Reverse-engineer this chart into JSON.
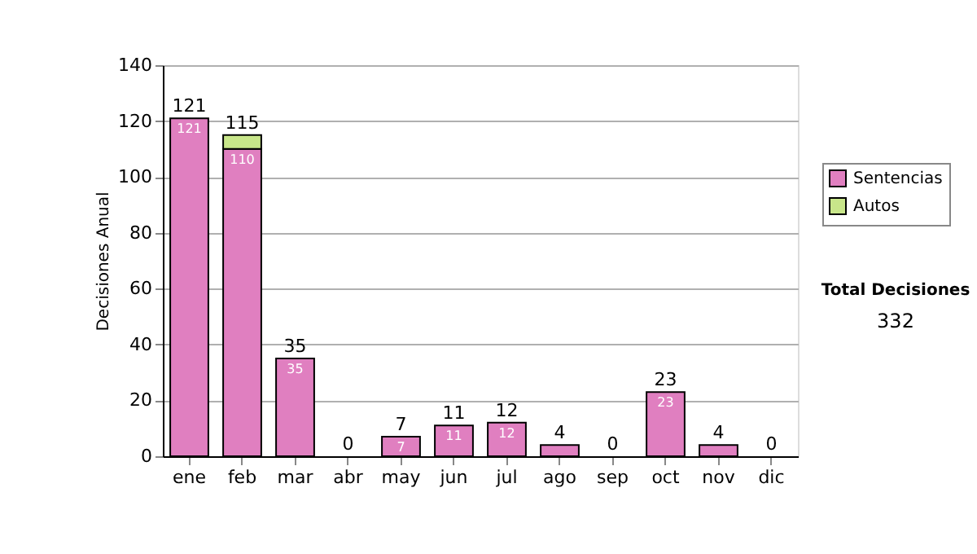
{
  "chart_data": {
    "type": "bar",
    "stacked": true,
    "ylabel": "Decisiones Anual",
    "categories": [
      "ene",
      "feb",
      "mar",
      "abr",
      "may",
      "jun",
      "jul",
      "ago",
      "sep",
      "oct",
      "nov",
      "dic"
    ],
    "series": [
      {
        "name": "Sentencias",
        "color": "#e07fc0",
        "values": [
          121,
          110,
          35,
          0,
          7,
          11,
          12,
          4,
          0,
          23,
          4,
          0
        ],
        "value_labels": [
          "121",
          "110",
          "35",
          null,
          "7",
          "11",
          "12",
          null,
          null,
          "23",
          null,
          null
        ]
      },
      {
        "name": "Autos",
        "color": "#c8e68a",
        "values": [
          0,
          5,
          0,
          0,
          0,
          0,
          0,
          0,
          0,
          0,
          0,
          0
        ]
      }
    ],
    "totals": [
      "121",
      "115",
      "35",
      "0",
      "7",
      "11",
      "12",
      "4",
      "0",
      "23",
      "4",
      "0"
    ],
    "ylim": [
      0,
      140
    ],
    "yticks": [
      0,
      20,
      40,
      60,
      80,
      100,
      120,
      140
    ],
    "grid": "y",
    "legend": "right",
    "annotations": [
      "Total Decisiones",
      "332"
    ]
  }
}
